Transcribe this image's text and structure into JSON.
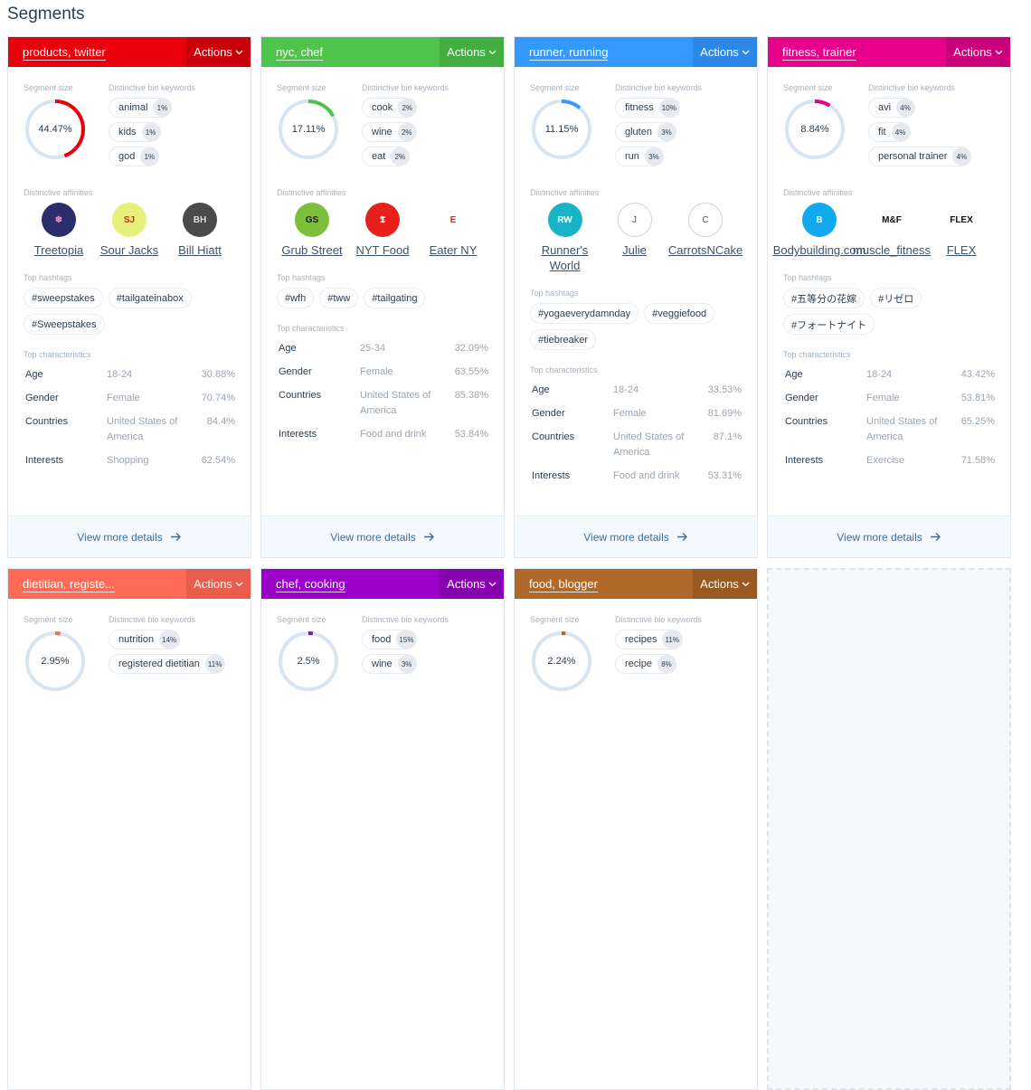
{
  "page_title": "Segments",
  "labels": {
    "segment_size": "Segment size",
    "bio_keywords": "Distinctive bio keywords",
    "affinities": "Distinctive affinities",
    "hashtags": "Top hashtags",
    "characteristics": "Top characteristics",
    "actions": "Actions",
    "view_more": "View more details"
  },
  "segments": [
    {
      "title": "products, twitter",
      "color": "#e8000d",
      "action_color": "#c90009",
      "size_pct": 44.47,
      "size_label": "44.47%",
      "keywords": [
        {
          "k": "animal",
          "p": "1%"
        },
        {
          "k": "kids",
          "p": "1%"
        },
        {
          "k": "god",
          "p": "1%"
        }
      ],
      "affinities": [
        {
          "name": "Treetopia",
          "bg": "#2a2f6b",
          "fg": "#ff8fd0",
          "mark": "❄"
        },
        {
          "name": "Sour Jacks",
          "bg": "#e8f07a",
          "fg": "#d4281c",
          "mark": "SJ"
        },
        {
          "name": "Bill Hiatt",
          "bg": "#4a4a4a",
          "fg": "#ddd",
          "mark": "BH"
        }
      ],
      "hashtags": [
        "#sweepstakes",
        "#tailgateinabox",
        "#Sweepstakes"
      ],
      "characteristics": [
        {
          "k": "Age",
          "c": "18-24",
          "p": "30.88%"
        },
        {
          "k": "Gender",
          "c": "Female",
          "p": "70.74%"
        },
        {
          "k": "Countries",
          "c": "United States of America",
          "p": "84.4%"
        },
        {
          "k": "Interests",
          "c": "Shopping",
          "p": "62.54%"
        }
      ]
    },
    {
      "title": "nyc, chef",
      "color": "#4fc44c",
      "action_color": "#43ad40",
      "size_pct": 17.11,
      "size_label": "17.11%",
      "keywords": [
        {
          "k": "cook",
          "p": "2%"
        },
        {
          "k": "wine",
          "p": "2%"
        },
        {
          "k": "eat",
          "p": "2%"
        }
      ],
      "affinities": [
        {
          "name": "Grub Street",
          "bg": "#7cbf3a",
          "fg": "#1a1a1a",
          "mark": "GS"
        },
        {
          "name": "NYT Food",
          "bg": "#e8201c",
          "fg": "#fff",
          "mark": "𝕿"
        },
        {
          "name": "Eater NY",
          "bg": "#fff",
          "fg": "#e8201c",
          "mark": "E"
        }
      ],
      "hashtags": [
        "#wfh",
        "#tww",
        "#tailgating"
      ],
      "characteristics": [
        {
          "k": "Age",
          "c": "25-34",
          "p": "32.09%"
        },
        {
          "k": "Gender",
          "c": "Female",
          "p": "63.55%"
        },
        {
          "k": "Countries",
          "c": "United States of America",
          "p": "85.38%"
        },
        {
          "k": "Interests",
          "c": "Food and drink",
          "p": "53.84%"
        }
      ]
    },
    {
      "title": "runner, running",
      "color": "#3399ff",
      "action_color": "#2b88e6",
      "size_pct": 11.15,
      "size_label": "11.15%",
      "keywords": [
        {
          "k": "fitness",
          "p": "10%"
        },
        {
          "k": "gluten",
          "p": "3%"
        },
        {
          "k": "run",
          "p": "3%"
        }
      ],
      "affinities": [
        {
          "name": "Runner's World",
          "bg": "#19b3c8",
          "fg": "#fff",
          "mark": "RW"
        },
        {
          "name": "Julie",
          "bg": "#fff",
          "fg": "#555",
          "mark": "J",
          "ring": true
        },
        {
          "name": "CarrotsNCake",
          "bg": "#fff",
          "fg": "#555",
          "mark": "C",
          "ring": true
        }
      ],
      "hashtags": [
        "#yogaeverydamnday",
        "#veggiefood",
        "#tiebreaker"
      ],
      "characteristics": [
        {
          "k": "Age",
          "c": "18-24",
          "p": "33.53%"
        },
        {
          "k": "Gender",
          "c": "Female",
          "p": "81.69%"
        },
        {
          "k": "Countries",
          "c": "United States of America",
          "p": "87.1%"
        },
        {
          "k": "Interests",
          "c": "Food and drink",
          "p": "53.31%"
        }
      ]
    },
    {
      "title": "fitness, trainer",
      "color": "#e6008a",
      "action_color": "#c9007a",
      "size_pct": 8.84,
      "size_label": "8.84%",
      "keywords": [
        {
          "k": "avi",
          "p": "4%"
        },
        {
          "k": "fit",
          "p": "4%"
        },
        {
          "k": "personal trainer",
          "p": "4%"
        }
      ],
      "affinities": [
        {
          "name": "Bodybuilding.com",
          "bg": "#12a8ee",
          "fg": "#fff",
          "mark": "B"
        },
        {
          "name": "muscle_fitness",
          "bg": "#fff",
          "fg": "#111",
          "mark": "M&F"
        },
        {
          "name": "FLEX",
          "bg": "#fff",
          "fg": "#111",
          "mark": "FLEX"
        }
      ],
      "hashtags": [
        "#五等分の花嫁",
        "#リゼロ",
        "#フォートナイト"
      ],
      "characteristics": [
        {
          "k": "Age",
          "c": "18-24",
          "p": "43.42%"
        },
        {
          "k": "Gender",
          "c": "Female",
          "p": "53.81%"
        },
        {
          "k": "Countries",
          "c": "United States of America",
          "p": "65.25%"
        },
        {
          "k": "Interests",
          "c": "Exercise",
          "p": "71.58%"
        }
      ]
    },
    {
      "title": "dietitian, registe...",
      "color": "#ff6b57",
      "action_color": "#e85e4c",
      "size_pct": 2.95,
      "size_label": "2.95%",
      "keywords": [
        {
          "k": "nutrition",
          "p": "14%"
        },
        {
          "k": "registered dietitian",
          "p": "11%"
        }
      ],
      "affinities": [],
      "hashtags": [],
      "characteristics": []
    },
    {
      "title": "chef, cooking",
      "color": "#9b00c8",
      "action_color": "#8600ad",
      "size_pct": 2.5,
      "size_label": "2.5%",
      "keywords": [
        {
          "k": "food",
          "p": "15%"
        },
        {
          "k": "wine",
          "p": "3%"
        }
      ],
      "affinities": [],
      "hashtags": [],
      "characteristics": []
    },
    {
      "title": "food, blogger",
      "color": "#b0692a",
      "action_color": "#985a22",
      "size_pct": 2.24,
      "size_label": "2.24%",
      "keywords": [
        {
          "k": "recipes",
          "p": "11%"
        },
        {
          "k": "recipe",
          "p": "8%"
        }
      ],
      "affinities": [],
      "hashtags": [],
      "characteristics": []
    }
  ]
}
